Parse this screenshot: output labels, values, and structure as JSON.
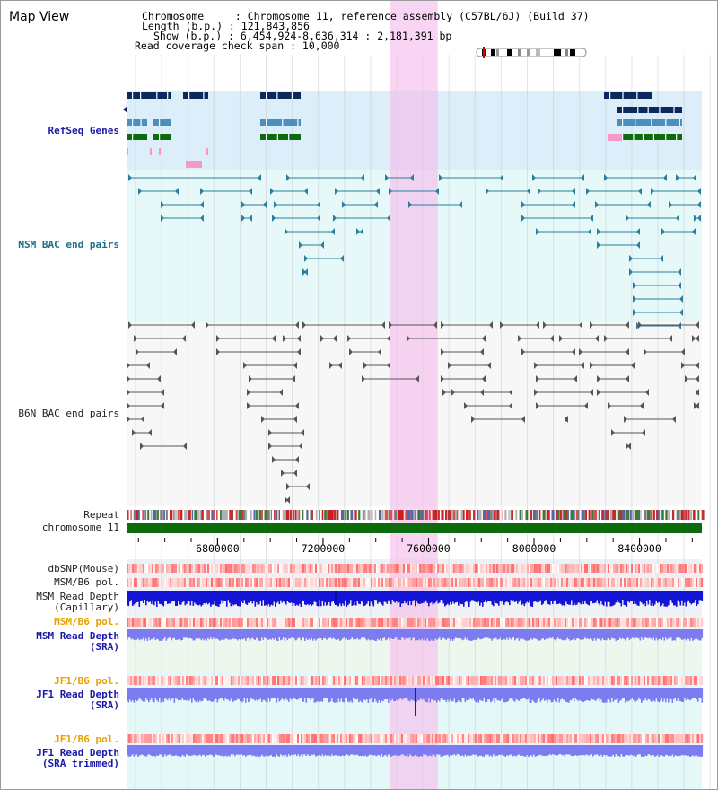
{
  "header": {
    "title": "Map View",
    "info_lines": [
      "Chromosome     : Chromosome 11, reference assembly (C57BL/6J) (Build 37)",
      "Length (b.p.) : 121,843,856",
      "Show (b.p.) : 6,454,924-8,636,314 : 2,181,391 bp",
      "Read coverage check span : 10,000"
    ]
  },
  "tracks": {
    "refseq": "RefSeq Genes",
    "msm_bac": "MSM BAC end pairs",
    "b6n_bac": "B6N BAC end pairs",
    "repeat": "Repeat",
    "chromosome": "chromosome 11",
    "dbsnp": "dbSNP(Mouse)",
    "msm_b6_pol_1": "MSM/B6 pol.",
    "msm_read_depth_cap": "MSM Read Depth\n(Capillary)",
    "msm_b6_pol_2": "MSM/B6 pol.",
    "msm_read_depth_sra": "MSM Read Depth\n(SRA)",
    "jf1_b6_pol_1": "JF1/B6 pol.",
    "jf1_read_depth_sra": "JF1 Read Depth\n(SRA)",
    "jf1_b6_pol_2": "JF1/B6 pol.",
    "jf1_read_depth_trimmed": "JF1 Read Depth\n(SRA trimmed)"
  },
  "axis": {
    "ticks": [
      "6800000",
      "7200000",
      "7600000",
      "8000000",
      "8400000"
    ],
    "tick_values": [
      6800000,
      7200000,
      7600000,
      8000000,
      8400000
    ],
    "start": 6454924,
    "end": 8636314
  },
  "highlight": {
    "start": 7455000,
    "end": 7635000,
    "color": "#f7d2ef"
  },
  "colors": {
    "gene_dark": "#0a2a5e",
    "gene_light": "#4a8fbd",
    "gene_green": "#0d6b0d",
    "gene_pink": "#f59ac6",
    "msm_bac": "#2a7f9e",
    "b6n_bac": "#555555",
    "chromosome": "#0d6b0d",
    "depth_dark": "#1414d4",
    "depth_light": "#7c7cf0",
    "label_blue": "#1a1aa8",
    "label_teal": "#1a6f86",
    "label_orange": "#e8a000"
  }
}
